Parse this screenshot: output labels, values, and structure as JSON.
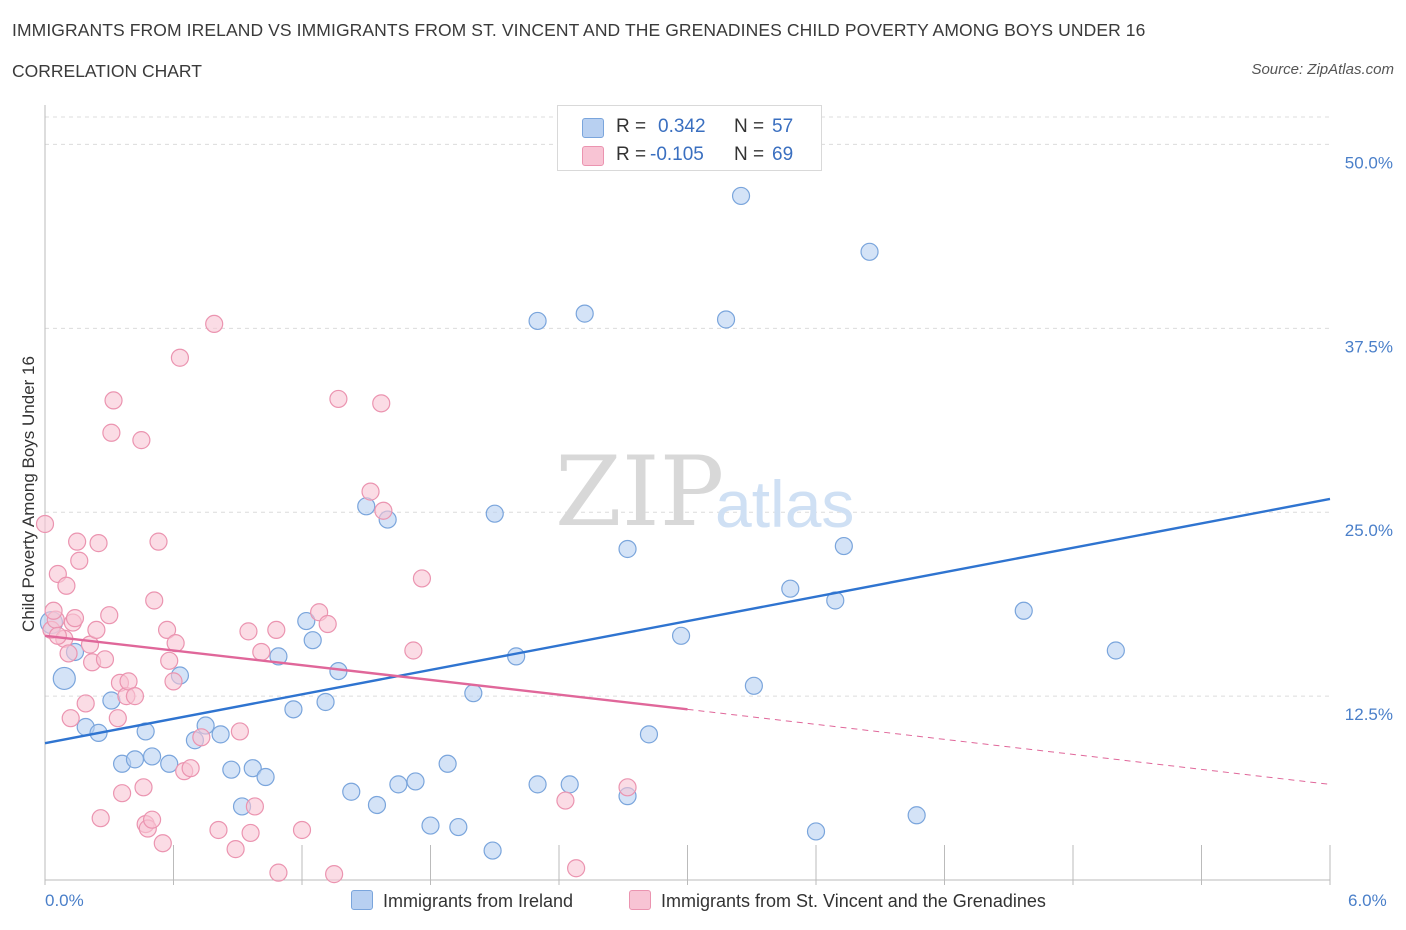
{
  "title": "IMMIGRANTS FROM IRELAND VS IMMIGRANTS FROM ST. VINCENT AND THE GRENADINES CHILD POVERTY AMONG BOYS UNDER 16",
  "subtitle": "CORRELATION CHART",
  "source": "Source: ZipAtlas.com",
  "watermark": {
    "zip": "ZIP",
    "atlas": "atlas"
  },
  "colors": {
    "blue_fill": "#b8d0f1",
    "blue_stroke": "#7aa5dc",
    "blue_line": "#2f74d0",
    "pink_fill": "#f8c4d4",
    "pink_stroke": "#eb94b0",
    "pink_line": "#e0679a",
    "tick_text": "#4a7fc9",
    "grid": "#dcdcdc"
  },
  "legend": {
    "rows": [
      {
        "r_label": "R =",
        "r_value": "0.342",
        "n_label": "N =",
        "n_value": "57"
      },
      {
        "r_label": "R =",
        "r_value": "-0.105",
        "n_label": "N =",
        "n_value": "69"
      }
    ]
  },
  "bottom_legend": {
    "series1": "Immigrants from Ireland",
    "series2": "Immigrants from St. Vincent and the Grenadines"
  },
  "chart_data": {
    "type": "scatter",
    "title": "IMMIGRANTS FROM IRELAND VS IMMIGRANTS FROM ST. VINCENT AND THE GRENADINES CHILD POVERTY AMONG BOYS UNDER 16",
    "xlabel": "",
    "ylabel": "Child Poverty Among Boys Under 16",
    "xlim": [
      0,
      6
    ],
    "ylim": [
      0,
      52
    ],
    "x_tick_labels": [
      "0.0%",
      "6.0%"
    ],
    "y_ticks": [
      12.5,
      25,
      37.5,
      50
    ],
    "y_tick_labels": [
      "12.5%",
      "25.0%",
      "37.5%",
      "50.0%"
    ],
    "grid": true,
    "series": [
      {
        "name": "Immigrants from Ireland",
        "color": "#7aa5dc",
        "points": [
          [
            0.03,
            17.5
          ],
          [
            0.09,
            13.7
          ],
          [
            0.14,
            15.5
          ],
          [
            0.19,
            10.4
          ],
          [
            0.25,
            10.0
          ],
          [
            0.31,
            12.2
          ],
          [
            0.36,
            7.9
          ],
          [
            0.42,
            8.2
          ],
          [
            0.47,
            10.1
          ],
          [
            0.5,
            8.4
          ],
          [
            0.58,
            7.9
          ],
          [
            0.63,
            13.9
          ],
          [
            0.7,
            9.5
          ],
          [
            0.75,
            10.5
          ],
          [
            0.82,
            9.9
          ],
          [
            0.87,
            7.5
          ],
          [
            0.92,
            5.0
          ],
          [
            0.97,
            7.6
          ],
          [
            1.03,
            7.0
          ],
          [
            1.09,
            15.2
          ],
          [
            1.16,
            11.6
          ],
          [
            1.22,
            17.6
          ],
          [
            1.25,
            16.3
          ],
          [
            1.31,
            12.1
          ],
          [
            1.37,
            14.2
          ],
          [
            1.43,
            6.0
          ],
          [
            1.5,
            25.4
          ],
          [
            1.55,
            5.1
          ],
          [
            1.6,
            24.5
          ],
          [
            1.65,
            6.5
          ],
          [
            1.73,
            6.7
          ],
          [
            1.8,
            3.7
          ],
          [
            1.88,
            7.9
          ],
          [
            1.93,
            3.6
          ],
          [
            2.0,
            12.7
          ],
          [
            2.1,
            24.9
          ],
          [
            2.09,
            2.0
          ],
          [
            2.2,
            15.2
          ],
          [
            2.3,
            38.0
          ],
          [
            2.3,
            6.5
          ],
          [
            2.45,
            6.5
          ],
          [
            2.52,
            38.5
          ],
          [
            2.72,
            5.7
          ],
          [
            2.72,
            22.5
          ],
          [
            2.82,
            9.9
          ],
          [
            2.97,
            16.6
          ],
          [
            3.18,
            38.1
          ],
          [
            3.25,
            46.5
          ],
          [
            3.31,
            13.2
          ],
          [
            3.48,
            19.8
          ],
          [
            3.6,
            3.3
          ],
          [
            3.69,
            19.0
          ],
          [
            3.73,
            22.7
          ],
          [
            3.85,
            42.7
          ],
          [
            4.07,
            4.4
          ],
          [
            4.57,
            18.3
          ],
          [
            5.0,
            15.6
          ]
        ]
      },
      {
        "name": "Immigrants from St. Vincent and the Grenadines",
        "color": "#eb94b0",
        "points": [
          [
            0.0,
            24.2
          ],
          [
            0.03,
            17.0
          ],
          [
            0.05,
            17.7
          ],
          [
            0.06,
            20.8
          ],
          [
            0.09,
            16.4
          ],
          [
            0.1,
            20.0
          ],
          [
            0.11,
            15.4
          ],
          [
            0.12,
            11.0
          ],
          [
            0.13,
            17.5
          ],
          [
            0.15,
            23.0
          ],
          [
            0.16,
            21.7
          ],
          [
            0.19,
            12.0
          ],
          [
            0.21,
            16.0
          ],
          [
            0.22,
            14.8
          ],
          [
            0.24,
            17.0
          ],
          [
            0.25,
            22.9
          ],
          [
            0.26,
            4.2
          ],
          [
            0.28,
            15.0
          ],
          [
            0.3,
            18.0
          ],
          [
            0.31,
            30.4
          ],
          [
            0.32,
            32.6
          ],
          [
            0.34,
            11.0
          ],
          [
            0.35,
            13.4
          ],
          [
            0.36,
            5.9
          ],
          [
            0.38,
            12.5
          ],
          [
            0.39,
            13.5
          ],
          [
            0.42,
            12.5
          ],
          [
            0.45,
            29.9
          ],
          [
            0.46,
            6.3
          ],
          [
            0.47,
            3.8
          ],
          [
            0.48,
            3.5
          ],
          [
            0.5,
            4.1
          ],
          [
            0.51,
            19.0
          ],
          [
            0.53,
            23.0
          ],
          [
            0.55,
            2.5
          ],
          [
            0.57,
            17.0
          ],
          [
            0.58,
            14.9
          ],
          [
            0.6,
            13.5
          ],
          [
            0.61,
            16.1
          ],
          [
            0.63,
            35.5
          ],
          [
            0.65,
            7.4
          ],
          [
            0.68,
            7.6
          ],
          [
            0.73,
            9.7
          ],
          [
            0.79,
            37.8
          ],
          [
            0.81,
            3.4
          ],
          [
            0.89,
            2.1
          ],
          [
            0.91,
            10.1
          ],
          [
            0.95,
            16.9
          ],
          [
            0.96,
            3.2
          ],
          [
            0.98,
            5.0
          ],
          [
            1.01,
            15.5
          ],
          [
            1.08,
            17.0
          ],
          [
            1.09,
            0.5
          ],
          [
            1.2,
            3.4
          ],
          [
            1.28,
            18.2
          ],
          [
            1.32,
            17.4
          ],
          [
            1.35,
            0.4
          ],
          [
            1.37,
            32.7
          ],
          [
            1.52,
            26.4
          ],
          [
            1.57,
            32.4
          ],
          [
            1.58,
            25.1
          ],
          [
            1.72,
            15.6
          ],
          [
            1.76,
            20.5
          ],
          [
            2.43,
            5.4
          ],
          [
            2.48,
            0.8
          ],
          [
            2.72,
            6.3
          ],
          [
            0.04,
            18.3
          ],
          [
            0.14,
            17.8
          ],
          [
            0.06,
            16.6
          ]
        ]
      }
    ],
    "trend_lines": [
      {
        "series": "Immigrants from Ireland",
        "x": [
          0,
          6
        ],
        "y": [
          9.3,
          25.9
        ],
        "style": "solid"
      },
      {
        "series": "Immigrants from St. Vincent and the Grenadines",
        "x": [
          0,
          3.0
        ],
        "y": [
          16.6,
          11.6
        ],
        "style": "solid"
      },
      {
        "series": "Immigrants from St. Vincent and the Grenadines",
        "x": [
          3.0,
          6
        ],
        "y": [
          11.6,
          6.5
        ],
        "style": "dashed"
      }
    ]
  }
}
